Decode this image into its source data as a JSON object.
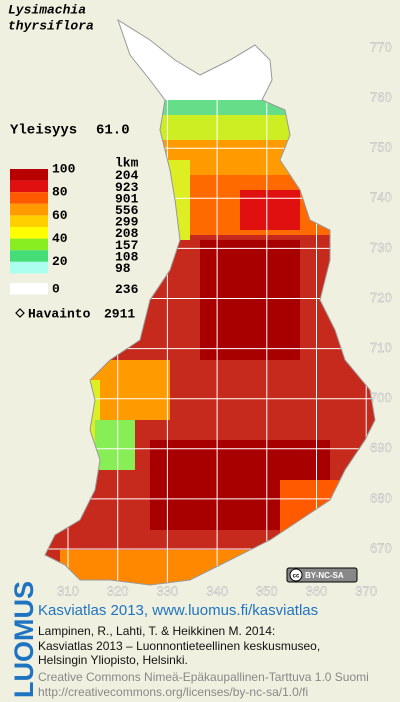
{
  "title": [
    "Lysimachia",
    "thyrsiflora"
  ],
  "frequency": {
    "label": "Yleisyys",
    "value": "61.0"
  },
  "legend": {
    "header": "lkm",
    "scale": [
      100,
      80,
      60,
      40,
      20,
      0
    ],
    "classes": [
      {
        "color": "#b80000",
        "count": 204
      },
      {
        "color": "#e01010",
        "count": 923
      },
      {
        "color": "#ff5a00",
        "count": 901
      },
      {
        "color": "#ff9a00",
        "count": 556
      },
      {
        "color": "#ffd000",
        "count": 299
      },
      {
        "color": "#ffff00",
        "count": 208
      },
      {
        "color": "#88ee22",
        "count": 157
      },
      {
        "color": "#44dd77",
        "count": 108
      },
      {
        "color": "#aaffee",
        "count": 98
      },
      {
        "color": "#ffffff",
        "count": 236
      }
    ]
  },
  "observations": {
    "label": "Havainto",
    "value": 2911
  },
  "grid": {
    "y_labels": [
      770,
      760,
      750,
      740,
      730,
      720,
      710,
      700,
      690,
      680,
      670
    ],
    "x_labels": [
      310,
      320,
      330,
      340,
      350,
      360,
      370
    ]
  },
  "license_badge": "BY-NC-SA",
  "footer": {
    "logo": "LUOMUS",
    "link": "Kasviatlas 2013, www.luomus.fi/kasviatlas",
    "citation": [
      "Lampinen, R., Lahti, T. & Heikkinen M. 2014:",
      "Kasviatlas 2013 – Luonnontieteellinen keskusmuseo,",
      "Helsingin Yliopisto, Helsinki."
    ],
    "license": [
      "Creative Commons Nimeä-Epäkaupallinen-Tarttuva 1.0 Suomi",
      "http://creativecommons.org/licenses/by-nc-sa/1.0/fi"
    ]
  }
}
